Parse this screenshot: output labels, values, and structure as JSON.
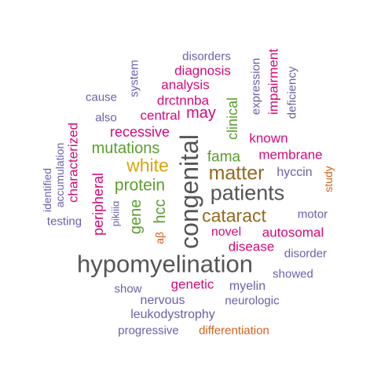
{
  "colors": {
    "purple": "#6b5fa8",
    "magenta": "#d4097a",
    "green": "#5a9e2e",
    "gold": "#dba40d",
    "brown": "#94691e",
    "gray": "#555555",
    "orange": "#d6601a"
  },
  "words": {
    "hypomyelination": "hypomyelination",
    "congenital": "congenital",
    "patients": "patients",
    "matter": "matter",
    "cataract": "cataract",
    "white": "white",
    "protein": "protein",
    "mutations": "mutations",
    "recessive": "recessive",
    "gene": "gene",
    "hcc": "hcc",
    "fama": "fama",
    "central": "central",
    "may": "may",
    "clinical": "clinical",
    "known": "known",
    "membrane": "membrane",
    "hyccin": "hyccin",
    "autosomal": "autosomal",
    "novel": "novel",
    "disease": "disease",
    "drctnnba": "drctnnba",
    "analysis": "analysis",
    "diagnosis": "diagnosis",
    "disorders": "disorders",
    "system": "system",
    "cause": "cause",
    "also": "also",
    "expression": "expression",
    "impairment": "impairment",
    "deficiency": "deficiency",
    "characterized": "characterized",
    "accumulation": "accumulation",
    "identified": "identified",
    "testing": "testing",
    "peripheral": "peripheral",
    "pikiiia": "pikiiiα",
    "abeta": "aβ",
    "study": "study",
    "motor": "motor",
    "disorder": "disorder",
    "showed": "showed",
    "genetic": "genetic",
    "myelin": "myelin",
    "show": "show",
    "nervous": "nervous",
    "neurologic": "neurologic",
    "leukodystrophy": "leukodystrophy",
    "progressive": "progressive",
    "differentiation": "differentiation"
  }
}
